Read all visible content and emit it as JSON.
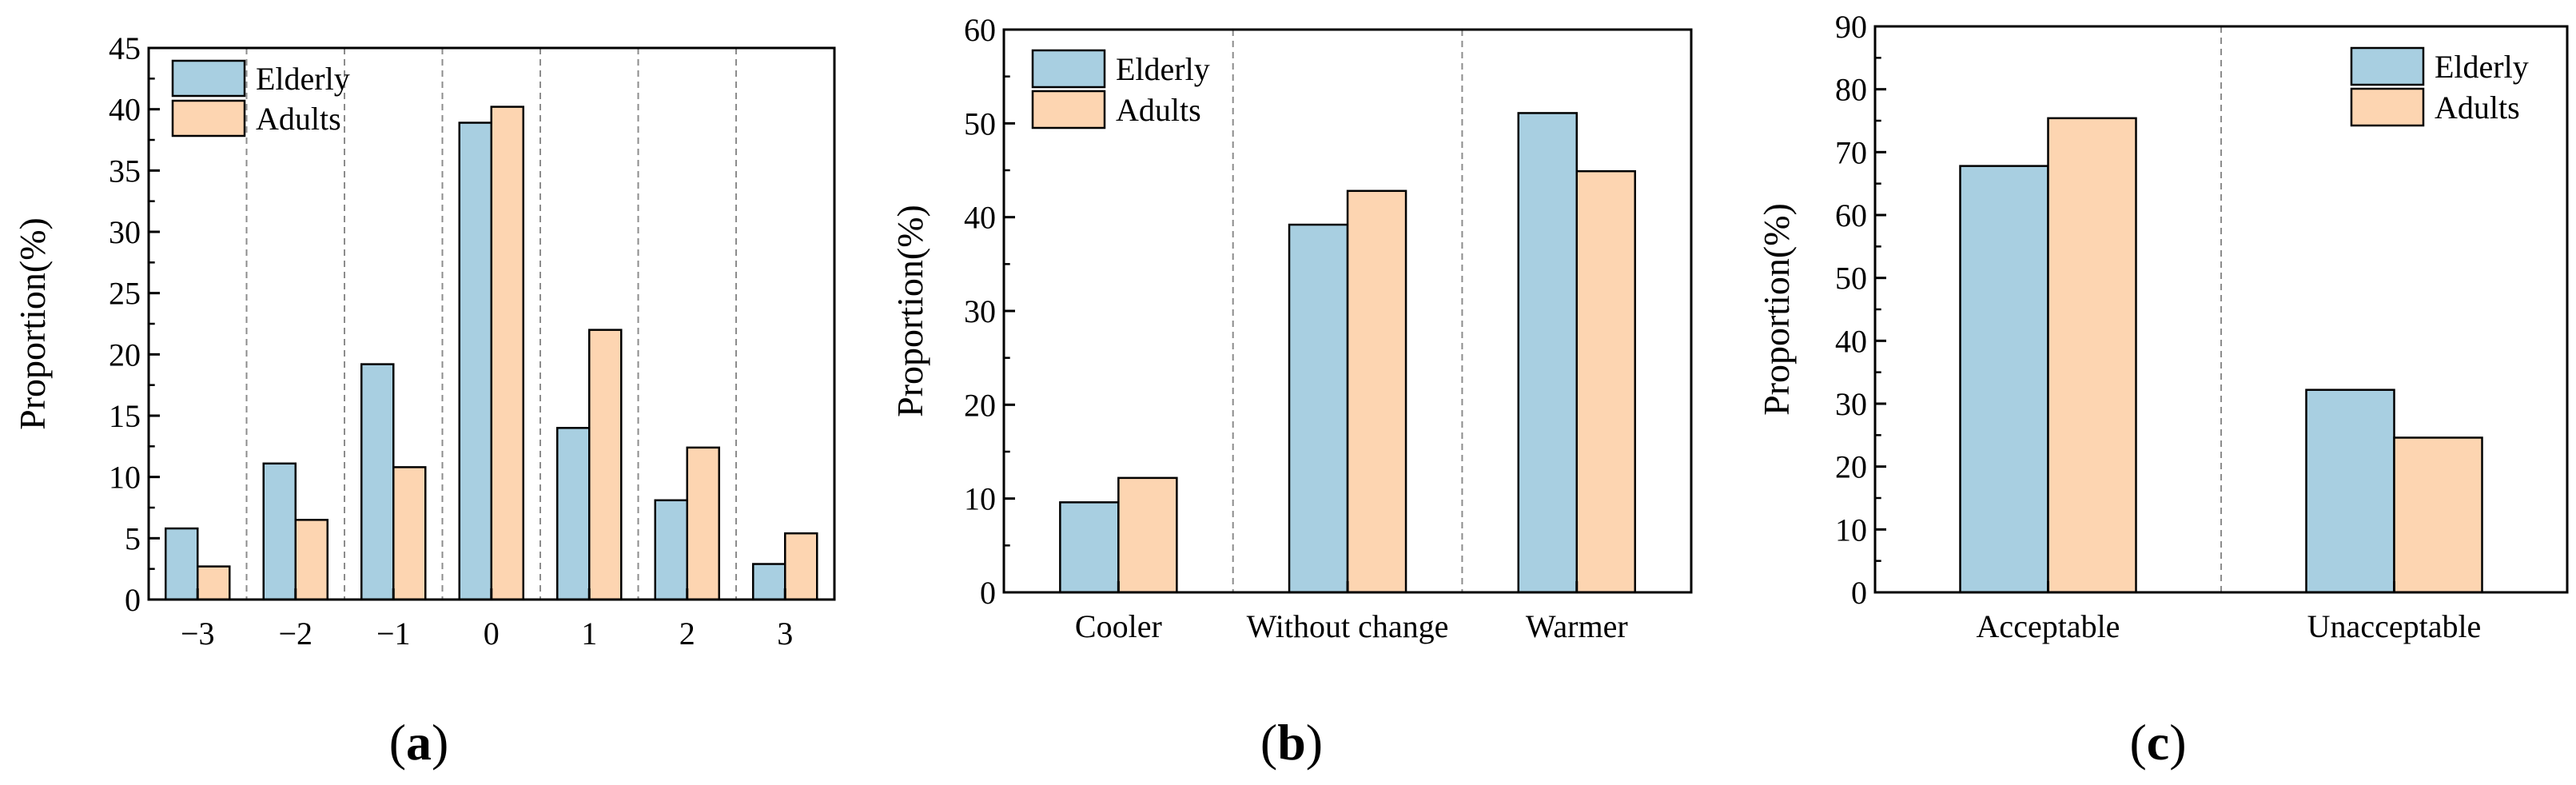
{
  "chart_data": [
    {
      "type": "bar",
      "panel_label": {
        "open": "(",
        "letter": "a",
        "close": ")"
      },
      "ylabel": "Proportion(%)",
      "xlabel": "",
      "ylim": [
        0,
        45
      ],
      "yticks": [
        0,
        5,
        10,
        15,
        20,
        25,
        30,
        35,
        40,
        45
      ],
      "categories": [
        "−3",
        "−2",
        "−1",
        "0",
        "1",
        "2",
        "3"
      ],
      "series": [
        {
          "name": "Elderly",
          "values": [
            5.8,
            11.1,
            19.2,
            38.9,
            14.0,
            8.1,
            2.9
          ]
        },
        {
          "name": "Adults",
          "values": [
            2.7,
            6.5,
            10.8,
            40.2,
            22.0,
            12.4,
            5.4
          ]
        }
      ],
      "legend_position": "top-left",
      "grid": false,
      "category_separators": true
    },
    {
      "type": "bar",
      "panel_label": {
        "open": "(",
        "letter": "b",
        "close": ")"
      },
      "ylabel": "Proportion(%)",
      "xlabel": "",
      "ylim": [
        0,
        60
      ],
      "yticks": [
        0,
        10,
        20,
        30,
        40,
        50,
        60
      ],
      "categories": [
        "Cooler",
        "Without change",
        "Warmer"
      ],
      "series": [
        {
          "name": "Elderly",
          "values": [
            9.6,
            39.2,
            51.1
          ]
        },
        {
          "name": "Adults",
          "values": [
            12.2,
            42.8,
            44.9
          ]
        }
      ],
      "legend_position": "top-left",
      "grid": false,
      "category_separators": true
    },
    {
      "type": "bar",
      "panel_label": {
        "open": "(",
        "letter": "c",
        "close": ")"
      },
      "ylabel": "Proportion(%)",
      "xlabel": "",
      "ylim": [
        0,
        90
      ],
      "yticks": [
        0,
        10,
        20,
        30,
        40,
        50,
        60,
        70,
        80,
        90
      ],
      "categories": [
        "Acceptable",
        "Unacceptable"
      ],
      "series": [
        {
          "name": "Elderly",
          "values": [
            67.8,
            32.2
          ]
        },
        {
          "name": "Adults",
          "values": [
            75.4,
            24.6
          ]
        }
      ],
      "legend_position": "top-right",
      "grid": false,
      "category_separators": true
    }
  ],
  "colors": {
    "Elderly": "#a8cfe1",
    "Adults": "#fdd5b1",
    "axis": "#000000",
    "separator": "#8c8c8c"
  }
}
